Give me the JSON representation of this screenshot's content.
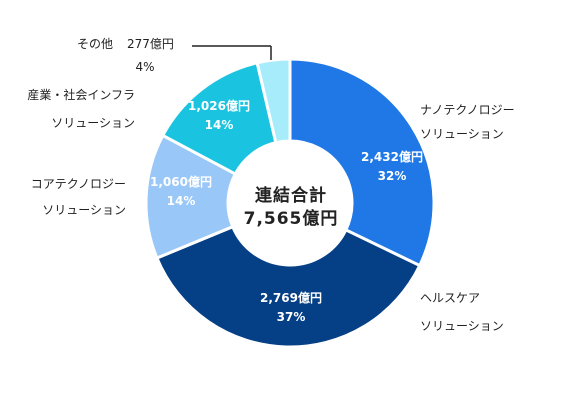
{
  "chart_data": {
    "type": "pie",
    "donut": true,
    "center_label": [
      "連結合計",
      "7,565億円"
    ],
    "categories": [
      "ナノテクノロジーソリューション",
      "ヘルスケアソリューション",
      "コアテクノロジーソリューション",
      "産業・社会インフラソリューション",
      "その他"
    ],
    "values": [
      2432,
      2769,
      1060,
      1026,
      277
    ],
    "unit": "億円",
    "percentages": [
      32,
      37,
      14,
      14,
      4
    ],
    "slices": [
      {
        "name_lines": [
          "ナノテクノロジー",
          "ソリューション"
        ],
        "value_label": "2,432億円",
        "pct_label": "32%",
        "color": "#1f78e6"
      },
      {
        "name_lines": [
          "ヘルスケア",
          "ソリューション"
        ],
        "value_label": "2,769億円",
        "pct_label": "37%",
        "color": "#053f86"
      },
      {
        "name_lines": [
          "コアテクノロジー",
          "ソリューション"
        ],
        "value_label": "1,060億円",
        "pct_label": "14%",
        "color": "#99c7f8"
      },
      {
        "name_lines": [
          "産業・社会インフラ",
          "ソリューション"
        ],
        "value_label": "1,026億円",
        "pct_label": "14%",
        "color": "#1ac4e0"
      },
      {
        "name_lines": [
          "その他"
        ],
        "value_label": "277億円",
        "pct_label": "4%",
        "color": "#a6ecfb"
      }
    ]
  }
}
